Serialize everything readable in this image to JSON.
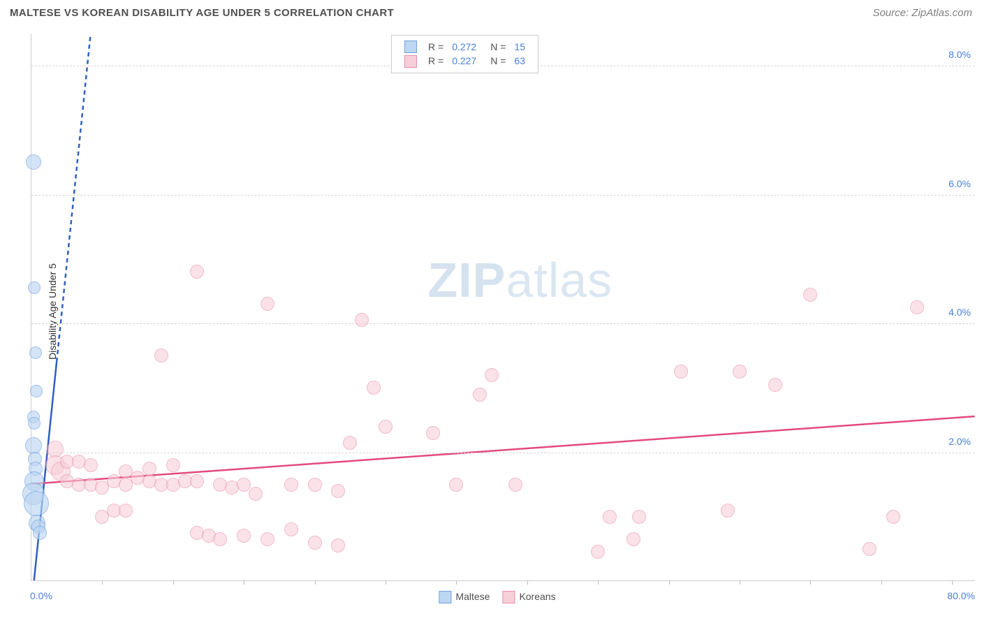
{
  "title": "MALTESE VS KOREAN DISABILITY AGE UNDER 5 CORRELATION CHART",
  "source": "Source: ZipAtlas.com",
  "ylabel": "Disability Age Under 5",
  "watermark": {
    "bold": "ZIP",
    "light": "atlas"
  },
  "chart": {
    "type": "scatter",
    "xlim": [
      0,
      80
    ],
    "ylim": [
      0,
      8.5
    ],
    "background_color": "#ffffff",
    "grid_color": "#d5d5d5",
    "axis_color": "#cccccc",
    "y_ticks": [
      2.0,
      4.0,
      6.0,
      8.0
    ],
    "y_tick_labels": [
      "2.0%",
      "4.0%",
      "6.0%",
      "8.0%"
    ],
    "y_tick_color": "#4a7fd6",
    "y_tick_fontsize": 14,
    "x_minor_ticks": [
      6,
      12,
      18,
      24,
      30,
      36,
      42,
      48,
      54,
      60,
      66,
      72,
      78
    ],
    "x_lo_label": {
      "text": "0.0%",
      "color": "#4a7fd6",
      "fontsize": 14
    },
    "x_hi_label": {
      "text": "80.0%",
      "color": "#4a7fd6",
      "fontsize": 14
    },
    "series": [
      {
        "name": "Maltese",
        "marker_fill": "#bdd6f2",
        "marker_stroke": "#6fa0df",
        "marker_opacity": 0.65,
        "marker_r_base": 9,
        "trend": {
          "stroke": "#2f5fbf",
          "width": 2.5,
          "dash": "6,5",
          "x0": 0.2,
          "y0": 0,
          "x1": 5,
          "y1": 8.5,
          "solid_until_y": 3.4
        },
        "points": [
          {
            "x": 0.15,
            "y": 6.5,
            "r": 11
          },
          {
            "x": 0.25,
            "y": 4.55,
            "r": 9
          },
          {
            "x": 0.35,
            "y": 3.55,
            "r": 9
          },
          {
            "x": 0.4,
            "y": 2.95,
            "r": 9
          },
          {
            "x": 0.2,
            "y": 2.55,
            "r": 9
          },
          {
            "x": 0.25,
            "y": 2.45,
            "r": 9
          },
          {
            "x": 0.2,
            "y": 2.1,
            "r": 12
          },
          {
            "x": 0.3,
            "y": 1.9,
            "r": 10
          },
          {
            "x": 0.35,
            "y": 1.75,
            "r": 10
          },
          {
            "x": 0.25,
            "y": 1.55,
            "r": 14
          },
          {
            "x": 0.2,
            "y": 1.35,
            "r": 16
          },
          {
            "x": 0.4,
            "y": 1.2,
            "r": 18
          },
          {
            "x": 0.5,
            "y": 0.9,
            "r": 12
          },
          {
            "x": 0.6,
            "y": 0.85,
            "r": 10
          },
          {
            "x": 0.7,
            "y": 0.75,
            "r": 10
          }
        ]
      },
      {
        "name": "Koreans",
        "marker_fill": "#f7cfd9",
        "marker_stroke": "#e98fab",
        "marker_opacity": 0.6,
        "marker_r_base": 10,
        "trend": {
          "stroke": "#e34a7d",
          "width": 2.5,
          "dash": "",
          "x0": 0,
          "y0": 1.5,
          "x1": 80,
          "y1": 2.55
        },
        "points": [
          {
            "x": 14,
            "y": 4.8,
            "r": 10
          },
          {
            "x": 20,
            "y": 4.3,
            "r": 10
          },
          {
            "x": 11,
            "y": 3.5,
            "r": 10
          },
          {
            "x": 28,
            "y": 4.05,
            "r": 10
          },
          {
            "x": 27,
            "y": 2.15,
            "r": 10
          },
          {
            "x": 30,
            "y": 2.4,
            "r": 10
          },
          {
            "x": 29,
            "y": 3.0,
            "r": 10
          },
          {
            "x": 34,
            "y": 2.3,
            "r": 10
          },
          {
            "x": 36,
            "y": 1.5,
            "r": 10
          },
          {
            "x": 38,
            "y": 2.9,
            "r": 10
          },
          {
            "x": 39,
            "y": 3.2,
            "r": 10
          },
          {
            "x": 41,
            "y": 1.5,
            "r": 10
          },
          {
            "x": 66,
            "y": 4.45,
            "r": 10
          },
          {
            "x": 75,
            "y": 4.25,
            "r": 10
          },
          {
            "x": 55,
            "y": 3.25,
            "r": 10
          },
          {
            "x": 60,
            "y": 3.25,
            "r": 10
          },
          {
            "x": 63,
            "y": 3.05,
            "r": 10
          },
          {
            "x": 49,
            "y": 1.0,
            "r": 10
          },
          {
            "x": 51,
            "y": 0.65,
            "r": 10
          },
          {
            "x": 51.5,
            "y": 1.0,
            "r": 10
          },
          {
            "x": 59,
            "y": 1.1,
            "r": 10
          },
          {
            "x": 73,
            "y": 1.0,
            "r": 10
          },
          {
            "x": 71,
            "y": 0.5,
            "r": 10
          },
          {
            "x": 48,
            "y": 0.45,
            "r": 10
          },
          {
            "x": 2,
            "y": 2.05,
            "r": 12
          },
          {
            "x": 2,
            "y": 1.8,
            "r": 14
          },
          {
            "x": 2.5,
            "y": 1.7,
            "r": 14
          },
          {
            "x": 3,
            "y": 1.85,
            "r": 10
          },
          {
            "x": 3,
            "y": 1.55,
            "r": 10
          },
          {
            "x": 4,
            "y": 1.85,
            "r": 10
          },
          {
            "x": 4,
            "y": 1.5,
            "r": 10
          },
          {
            "x": 5,
            "y": 1.8,
            "r": 10
          },
          {
            "x": 5,
            "y": 1.5,
            "r": 10
          },
          {
            "x": 6,
            "y": 1.45,
            "r": 10
          },
          {
            "x": 6,
            "y": 1.0,
            "r": 10
          },
          {
            "x": 7,
            "y": 1.55,
            "r": 10
          },
          {
            "x": 7,
            "y": 1.1,
            "r": 10
          },
          {
            "x": 8,
            "y": 1.7,
            "r": 10
          },
          {
            "x": 8,
            "y": 1.5,
            "r": 10
          },
          {
            "x": 8,
            "y": 1.1,
            "r": 10
          },
          {
            "x": 9,
            "y": 1.6,
            "r": 10
          },
          {
            "x": 10,
            "y": 1.55,
            "r": 10
          },
          {
            "x": 10,
            "y": 1.75,
            "r": 10
          },
          {
            "x": 11,
            "y": 1.5,
            "r": 10
          },
          {
            "x": 12,
            "y": 1.5,
            "r": 10
          },
          {
            "x": 12,
            "y": 1.8,
            "r": 10
          },
          {
            "x": 13,
            "y": 1.55,
            "r": 10
          },
          {
            "x": 14,
            "y": 1.55,
            "r": 10
          },
          {
            "x": 14,
            "y": 0.75,
            "r": 10
          },
          {
            "x": 15,
            "y": 0.7,
            "r": 10
          },
          {
            "x": 16,
            "y": 1.5,
            "r": 10
          },
          {
            "x": 16,
            "y": 0.65,
            "r": 10
          },
          {
            "x": 17,
            "y": 1.45,
            "r": 10
          },
          {
            "x": 18,
            "y": 1.5,
            "r": 10
          },
          {
            "x": 18,
            "y": 0.7,
            "r": 10
          },
          {
            "x": 19,
            "y": 1.35,
            "r": 10
          },
          {
            "x": 20,
            "y": 0.65,
            "r": 10
          },
          {
            "x": 22,
            "y": 1.5,
            "r": 10
          },
          {
            "x": 22,
            "y": 0.8,
            "r": 10
          },
          {
            "x": 24,
            "y": 1.5,
            "r": 10
          },
          {
            "x": 24,
            "y": 0.6,
            "r": 10
          },
          {
            "x": 26,
            "y": 1.4,
            "r": 10
          },
          {
            "x": 26,
            "y": 0.55,
            "r": 10
          }
        ]
      }
    ],
    "legend_top": {
      "border": "#cccccc",
      "bg": "#ffffff",
      "label_color": "#505050",
      "value_color": "#4a7fd6",
      "rows": [
        {
          "sw_fill": "#bdd6f2",
          "sw_stroke": "#6fa0df",
          "r_label": "R =",
          "r": "0.272",
          "n_label": "N =",
          "n": "15"
        },
        {
          "sw_fill": "#f7cfd9",
          "sw_stroke": "#e98fab",
          "r_label": "R =",
          "r": "0.227",
          "n_label": "N =",
          "n": "63"
        }
      ]
    },
    "legend_bottom": {
      "items": [
        {
          "sw_fill": "#bdd6f2",
          "sw_stroke": "#6fa0df",
          "label": "Maltese"
        },
        {
          "sw_fill": "#f7cfd9",
          "sw_stroke": "#e98fab",
          "label": "Koreans"
        }
      ]
    }
  }
}
